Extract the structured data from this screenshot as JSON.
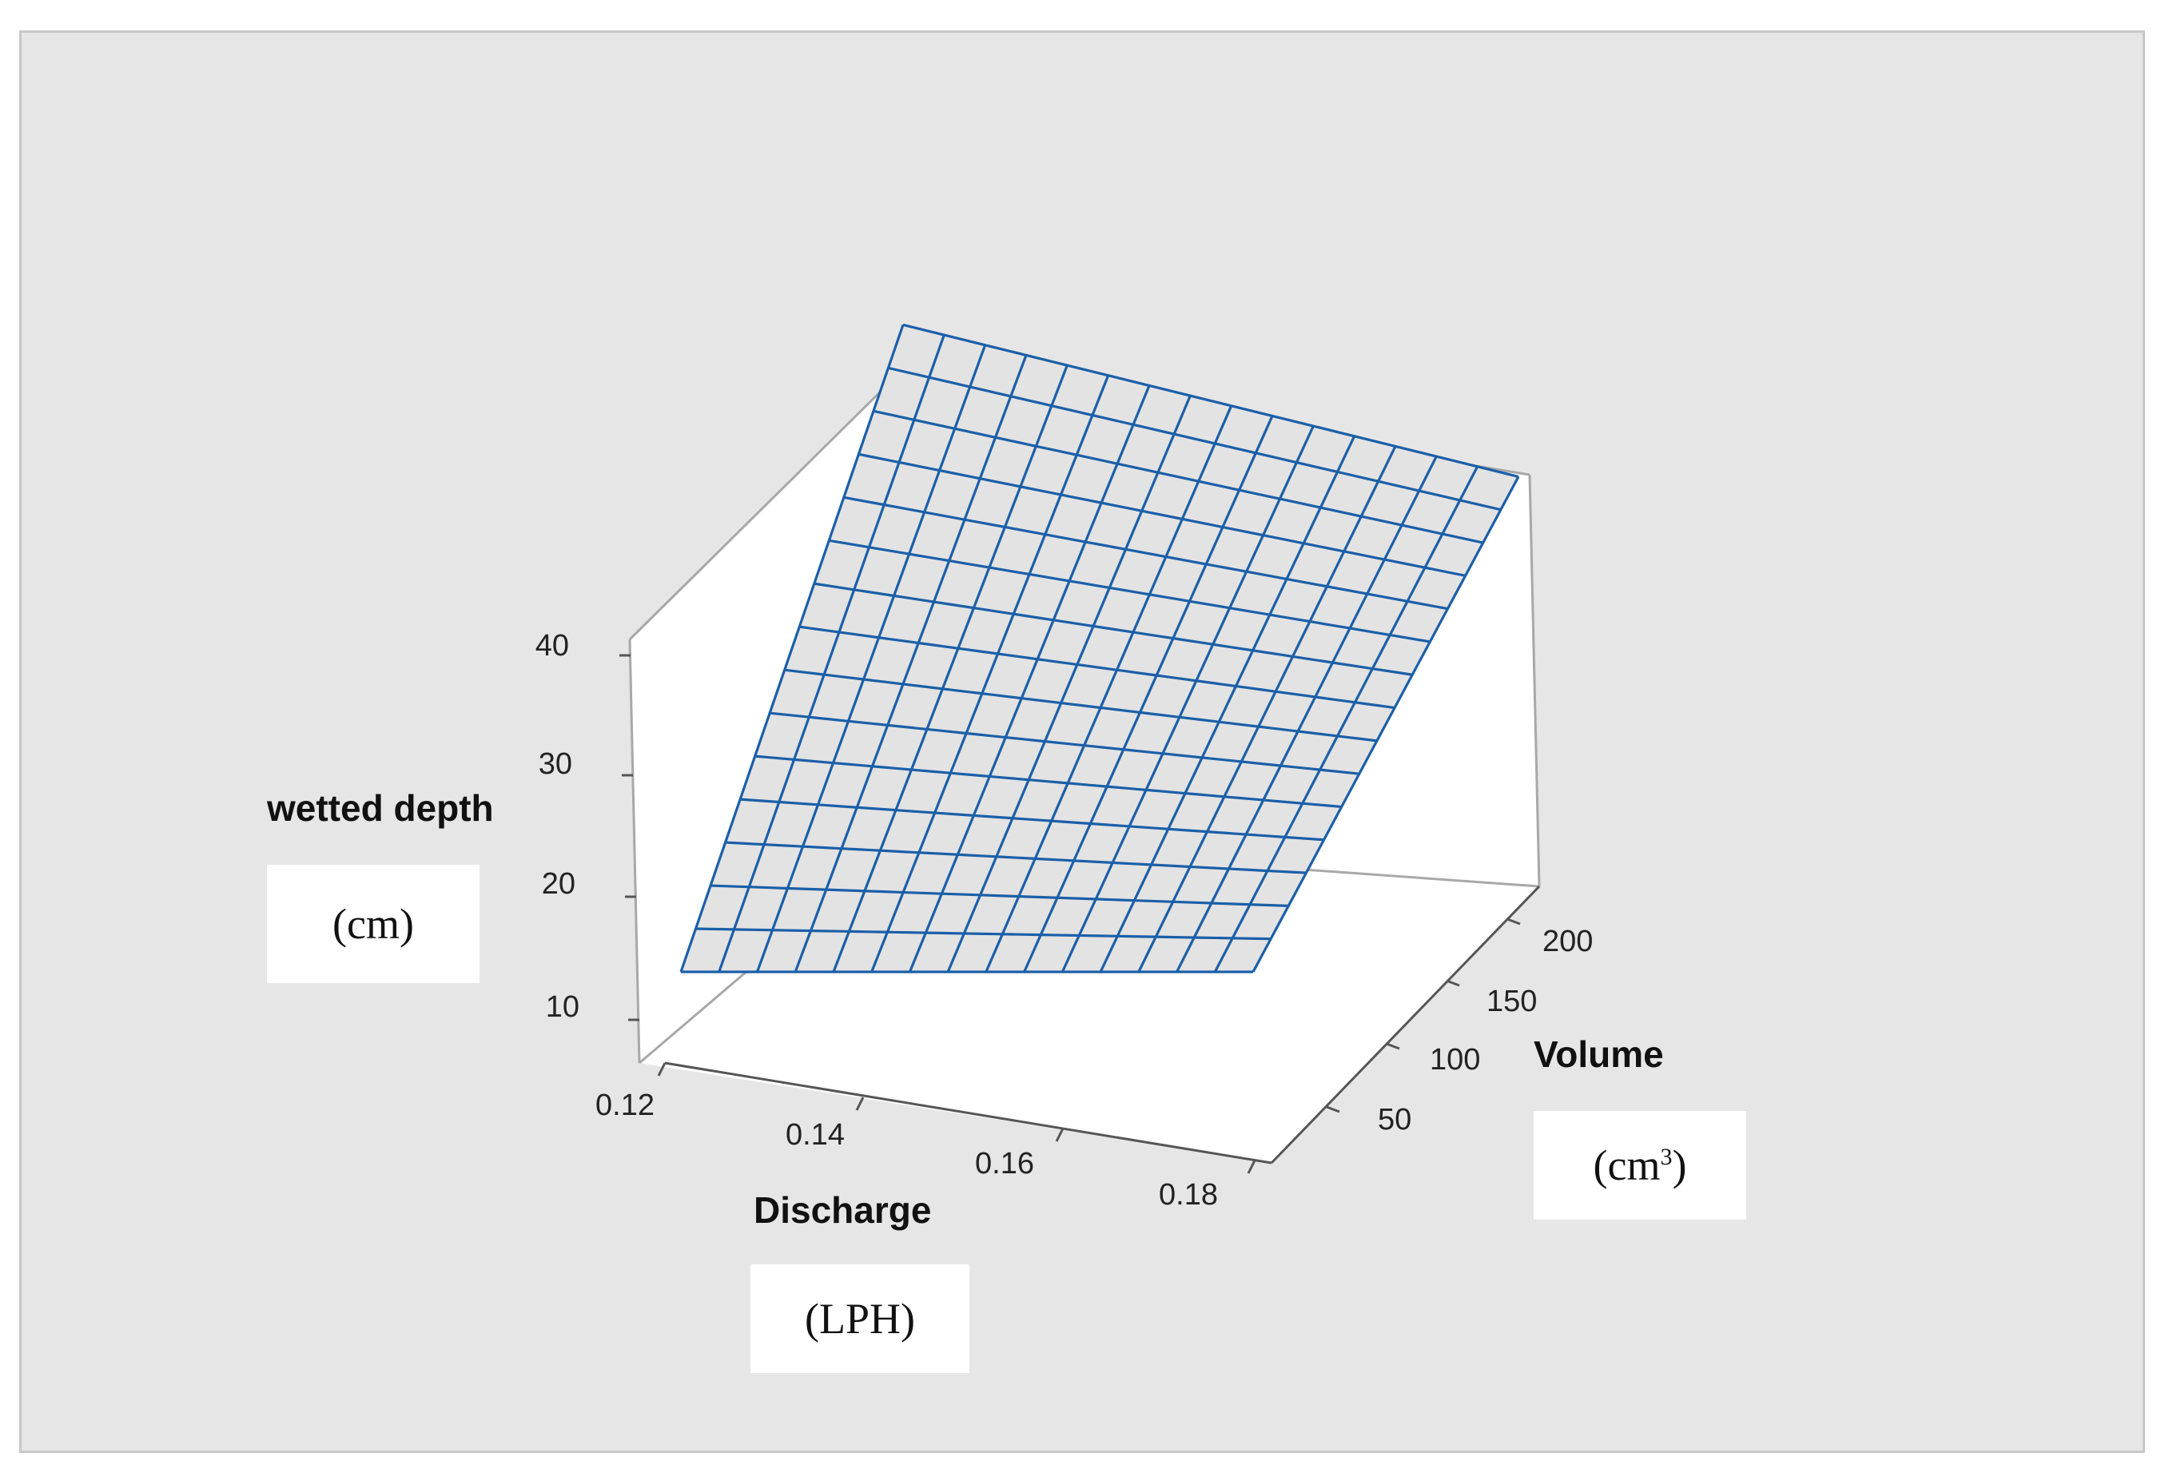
{
  "chart_data": {
    "type": "surface",
    "title": "",
    "x_axis": {
      "label": "Discharge",
      "unit": "(LPH)",
      "ticks": [
        "0.12",
        "0.14",
        "0.16",
        "0.18"
      ],
      "range": [
        0.12,
        0.18
      ]
    },
    "y_axis": {
      "label": "Volume",
      "unit_base": "(cm",
      "unit_sup": "3",
      "unit_close": ")",
      "ticks": [
        "50",
        "100",
        "150",
        "200"
      ],
      "range": [
        25,
        225
      ]
    },
    "z_axis": {
      "label": "wetted depth",
      "unit": "(cm)",
      "ticks": [
        "10",
        "20",
        "30",
        "40"
      ],
      "range": [
        5,
        50
      ]
    },
    "surface": {
      "grid_size": [
        15,
        15
      ],
      "corner_values": [
        {
          "discharge": 0.12,
          "volume": 25,
          "wetted_depth": 10
        },
        {
          "discharge": 0.18,
          "volume": 25,
          "wetted_depth": 10
        },
        {
          "discharge": 0.12,
          "volume": 225,
          "wetted_depth": 48
        },
        {
          "discharge": 0.18,
          "volume": 225,
          "wetted_depth": 38
        }
      ]
    },
    "mesh_color": "#1b5fa8",
    "surface_fill": "#e3e3e3",
    "background_color": "#e6e6e6",
    "grid": false,
    "legend": "none"
  }
}
